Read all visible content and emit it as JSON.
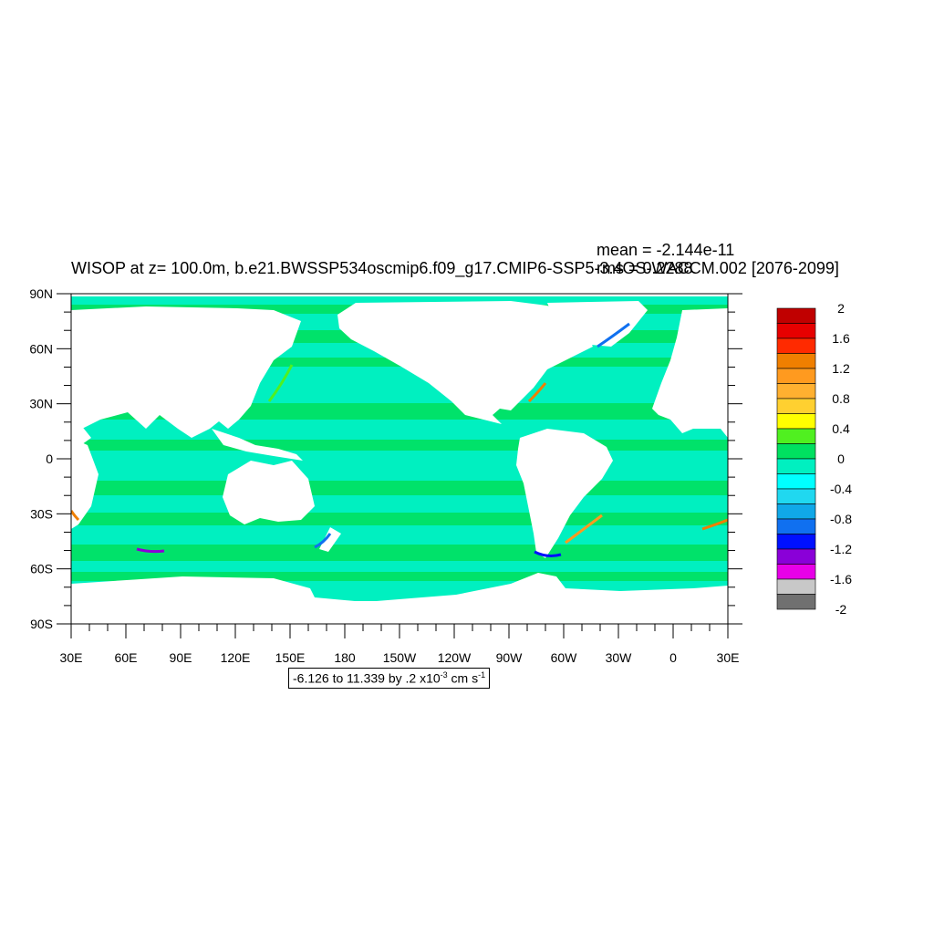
{
  "title": "WISOP at z= 100.0m, b.e21.BWSSP534oscmip6.f09_g17.CMIP6-SSP5-3.4OS-WACCM.002 [2076-2099]",
  "stats": {
    "mean": "mean = -2.144e-11",
    "rms": "rms = 0.2288"
  },
  "axes": {
    "lat_labels": [
      "90N",
      "60N",
      "30N",
      "0",
      "30S",
      "60S",
      "90S"
    ],
    "lon_labels": [
      "30E",
      "60E",
      "90E",
      "120E",
      "150E",
      "180",
      "150W",
      "120W",
      "90W",
      "60W",
      "30W",
      "0",
      "30E"
    ]
  },
  "colorbar": {
    "labels": [
      "2",
      "1.6",
      "1.2",
      "0.8",
      "0.4",
      "0",
      "-0.4",
      "-0.8",
      "-1.2",
      "-1.6",
      "-2"
    ],
    "colors": [
      "#C00000",
      "#E60000",
      "#FF2A00",
      "#F07F00",
      "#FF9A1F",
      "#FFB030",
      "#FFD030",
      "#FFFF00",
      "#50F020",
      "#00E060",
      "#00F0C0",
      "#00FFFF",
      "#20D8F0",
      "#10A8E8",
      "#1070F0",
      "#0010FF",
      "#8A00D8",
      "#E800E8",
      "#C8C8C8",
      "#707070"
    ]
  },
  "info": {
    "range_text": "-6.126 to 11.339 by .2 x10",
    "exponent": "-3",
    "unit": " cm s",
    "unit_exp": "-1"
  },
  "map_colors": {
    "land": "#FFFFFF",
    "ocean_pos": "#00E060",
    "ocean_neg": "#00F0C0"
  }
}
